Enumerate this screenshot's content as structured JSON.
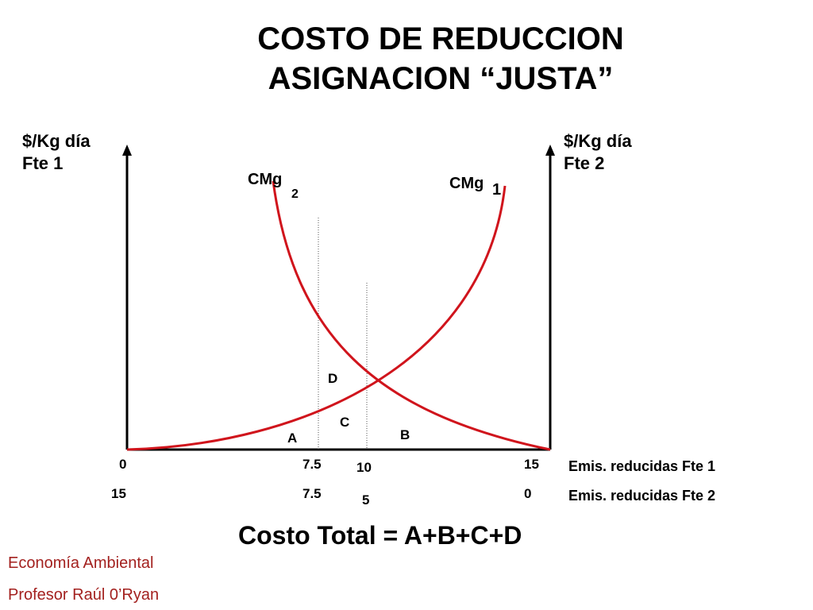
{
  "title": {
    "line1": "COSTO DE REDUCCION",
    "line2": "ASIGNACION “JUSTA”"
  },
  "left_axis": {
    "line1": "$/Kg día",
    "line2": "Fte 1"
  },
  "right_axis": {
    "line1": "$/Kg día",
    "line2": "Fte 2"
  },
  "curves": {
    "cmg2": {
      "label": "CMg",
      "sub": "2"
    },
    "cmg1": {
      "label": "CMg",
      "sub": "1"
    }
  },
  "areas": {
    "a": "A",
    "b": "B",
    "c": "C",
    "d": "D"
  },
  "ticks_fte1": [
    "0",
    "7.5",
    "10",
    "15"
  ],
  "ticks_fte2": [
    "15",
    "7.5",
    "5",
    "0"
  ],
  "x_axis_titles": {
    "fte1": "Emis. reducidas Fte 1",
    "fte2": "Emis. reducidas Fte 2"
  },
  "total_cost": "Costo Total = A+B+C+D",
  "footer": {
    "course": "Economía Ambiental",
    "professor": "Profesor Raúl 0’Ryan"
  },
  "colors": {
    "curve": "#d0141c",
    "axis": "#000000",
    "footer": "#a3211f"
  }
}
